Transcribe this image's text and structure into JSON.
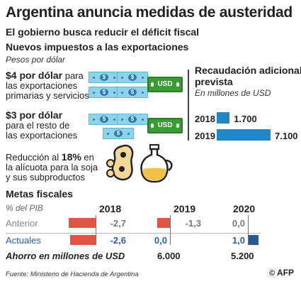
{
  "title": "Argentina anuncia medidas de austeridad",
  "subtitle": "El gobierno busca reducir el déficit fiscal",
  "exports": {
    "heading": "Nuevos impuestos a las exportaciones",
    "unit": "Pesos por dólar",
    "tax1": {
      "amount": "$4 por dólar",
      "text_a": " para",
      "text_b": "las exportaciones",
      "text_c": "primarias y servicios"
    },
    "tax2": {
      "amount": "$3 por dólar",
      "text_b": "para el resto de",
      "text_c": "las exportaciones"
    },
    "tax3": {
      "text_pre": "Reducción al ",
      "amount": "18%",
      "text_a": " en",
      "text_b": "la alícuota para la soja",
      "text_c": "y sus subproductos"
    },
    "bill_symbol": "$",
    "usd_label": "USD"
  },
  "revenue": {
    "heading_1": "Recaudación adicional",
    "heading_2": "prevista",
    "unit": "En millones de USD",
    "rows": [
      {
        "year": "2018",
        "value": 1700,
        "value_label": "1.700"
      },
      {
        "year": "2019",
        "value": 7100,
        "value_label": "7.100"
      }
    ],
    "max": 7100,
    "bar_color": "#2287c9"
  },
  "fiscal": {
    "heading": "Metas fiscales",
    "unit": "% del PIB",
    "years": [
      "2018",
      "2019",
      "2020"
    ],
    "anterior_label": "Anterior",
    "actuales_label": "Actuales",
    "anterior": [
      {
        "v": -2.7,
        "label": "-2,7"
      },
      {
        "v": -1.3,
        "label": "-1,3"
      },
      {
        "v": 0.0,
        "label": "0,0"
      }
    ],
    "actuales": [
      {
        "v": -2.6,
        "label": "-2,6"
      },
      {
        "v": 0.0,
        "label": "0,0"
      },
      {
        "v": 1.0,
        "label": "1,0"
      }
    ],
    "ahorro_label": "Ahorro en millones de USD",
    "ahorro": [
      "6.000",
      "5.200"
    ],
    "negative_color": "#e05444",
    "positive_color": "#235a9c"
  },
  "footer": {
    "source": "Fuente: Ministerio de Hacienda de Argentina",
    "copyright": "©",
    "agency": "AFP"
  }
}
